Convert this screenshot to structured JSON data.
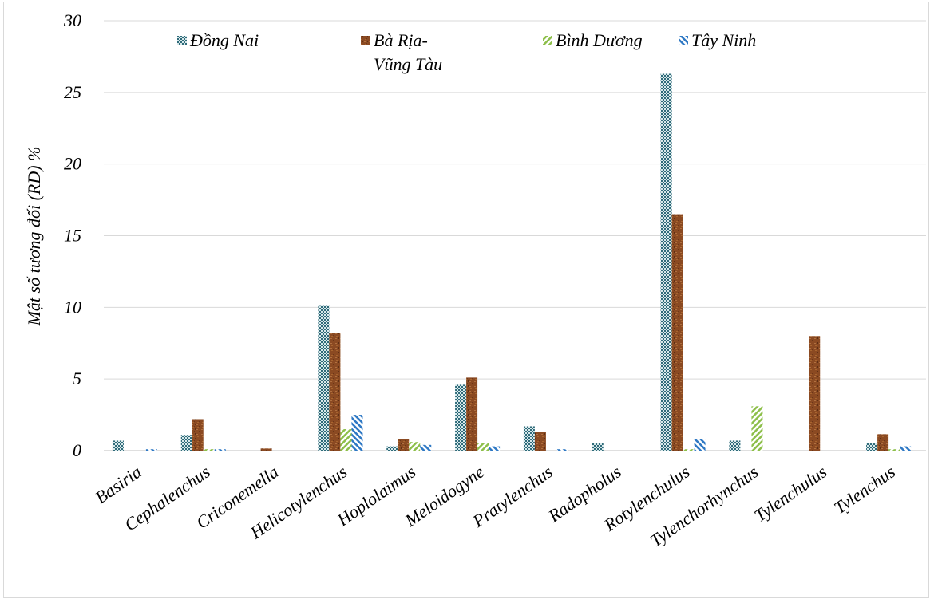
{
  "chart_data": {
    "type": "bar",
    "ylabel": "Mật số tương đối (RD) %",
    "ylim": [
      0,
      30
    ],
    "yticks": [
      "0",
      "5",
      "10",
      "15",
      "20",
      "25",
      "30"
    ],
    "grid": true,
    "legend_position": "top",
    "categories": [
      "Basiria",
      "Cephalenchus",
      "Criconemella",
      "Helicotylenchus",
      "Hoplolaimus",
      "Meloidogyne",
      "Pratylenchus",
      "Radopholus",
      "Rotylenchulus",
      "Tylenchorhynchus",
      "Tylenchulus",
      "Tylenchus"
    ],
    "series": [
      {
        "name": "Đồng Nai",
        "label_lines": [
          "Đồng Nai"
        ],
        "color": "#2f6b7a",
        "pattern": "checker",
        "values": [
          0.7,
          1.1,
          0,
          10.1,
          0.3,
          4.6,
          1.7,
          0.5,
          26.3,
          0.7,
          0,
          0.5
        ]
      },
      {
        "name": "Bà Rịa-Vũng Tàu",
        "label_lines": [
          "Bà Rịa-",
          "Vũng Tàu"
        ],
        "color": "#8b4a22",
        "pattern": "mottled",
        "values": [
          0,
          2.2,
          0.15,
          8.2,
          0.8,
          5.1,
          1.3,
          0,
          16.5,
          0,
          8.0,
          1.15
        ]
      },
      {
        "name": "Bình Dương",
        "label_lines": [
          "Bình Dương"
        ],
        "color": "#8dbf4a",
        "pattern": "diag",
        "values": [
          0,
          0.1,
          0,
          1.5,
          0.6,
          0.5,
          0,
          0,
          0.1,
          3.1,
          0,
          0.1
        ]
      },
      {
        "name": "Tây Ninh",
        "label_lines": [
          "Tây Ninh"
        ],
        "color": "#2e78c4",
        "pattern": "diag-rev",
        "values": [
          0.1,
          0.1,
          0,
          2.5,
          0.4,
          0.3,
          0.1,
          0,
          0.8,
          0,
          0,
          0.3
        ]
      }
    ]
  }
}
